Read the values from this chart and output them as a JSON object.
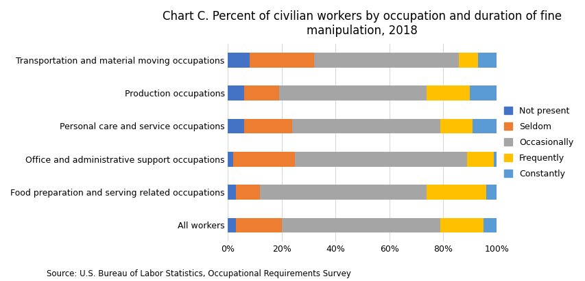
{
  "title": "Chart C. Percent of civilian workers by occupation and duration of fine\nmanipulation, 2018",
  "categories": [
    "All workers",
    "Food preparation and serving related occupations",
    "Office and administrative support occupations",
    "Personal care and service occupations",
    "Production occupations",
    "Transportation and material moving occupations"
  ],
  "series": {
    "Not present": [
      3,
      3,
      2,
      6,
      6,
      8
    ],
    "Seldom": [
      17,
      9,
      23,
      18,
      13,
      24
    ],
    "Occasionally": [
      59,
      62,
      64,
      55,
      55,
      54
    ],
    "Frequently": [
      16,
      22,
      10,
      12,
      16,
      7
    ],
    "Constantly": [
      5,
      4,
      1,
      9,
      10,
      7
    ]
  },
  "colors": {
    "Not present": "#4472C4",
    "Seldom": "#ED7D31",
    "Occasionally": "#A5A5A5",
    "Frequently": "#FFC000",
    "Constantly": "#5B9BD5"
  },
  "source": "Source: U.S. Bureau of Labor Statistics, Occupational Requirements Survey",
  "background_color": "#FFFFFF",
  "figsize": [
    8.54,
    4.11
  ],
  "dpi": 100,
  "title_fontsize": 12,
  "tick_fontsize": 9,
  "legend_fontsize": 9,
  "source_fontsize": 8.5,
  "bar_height": 0.45
}
